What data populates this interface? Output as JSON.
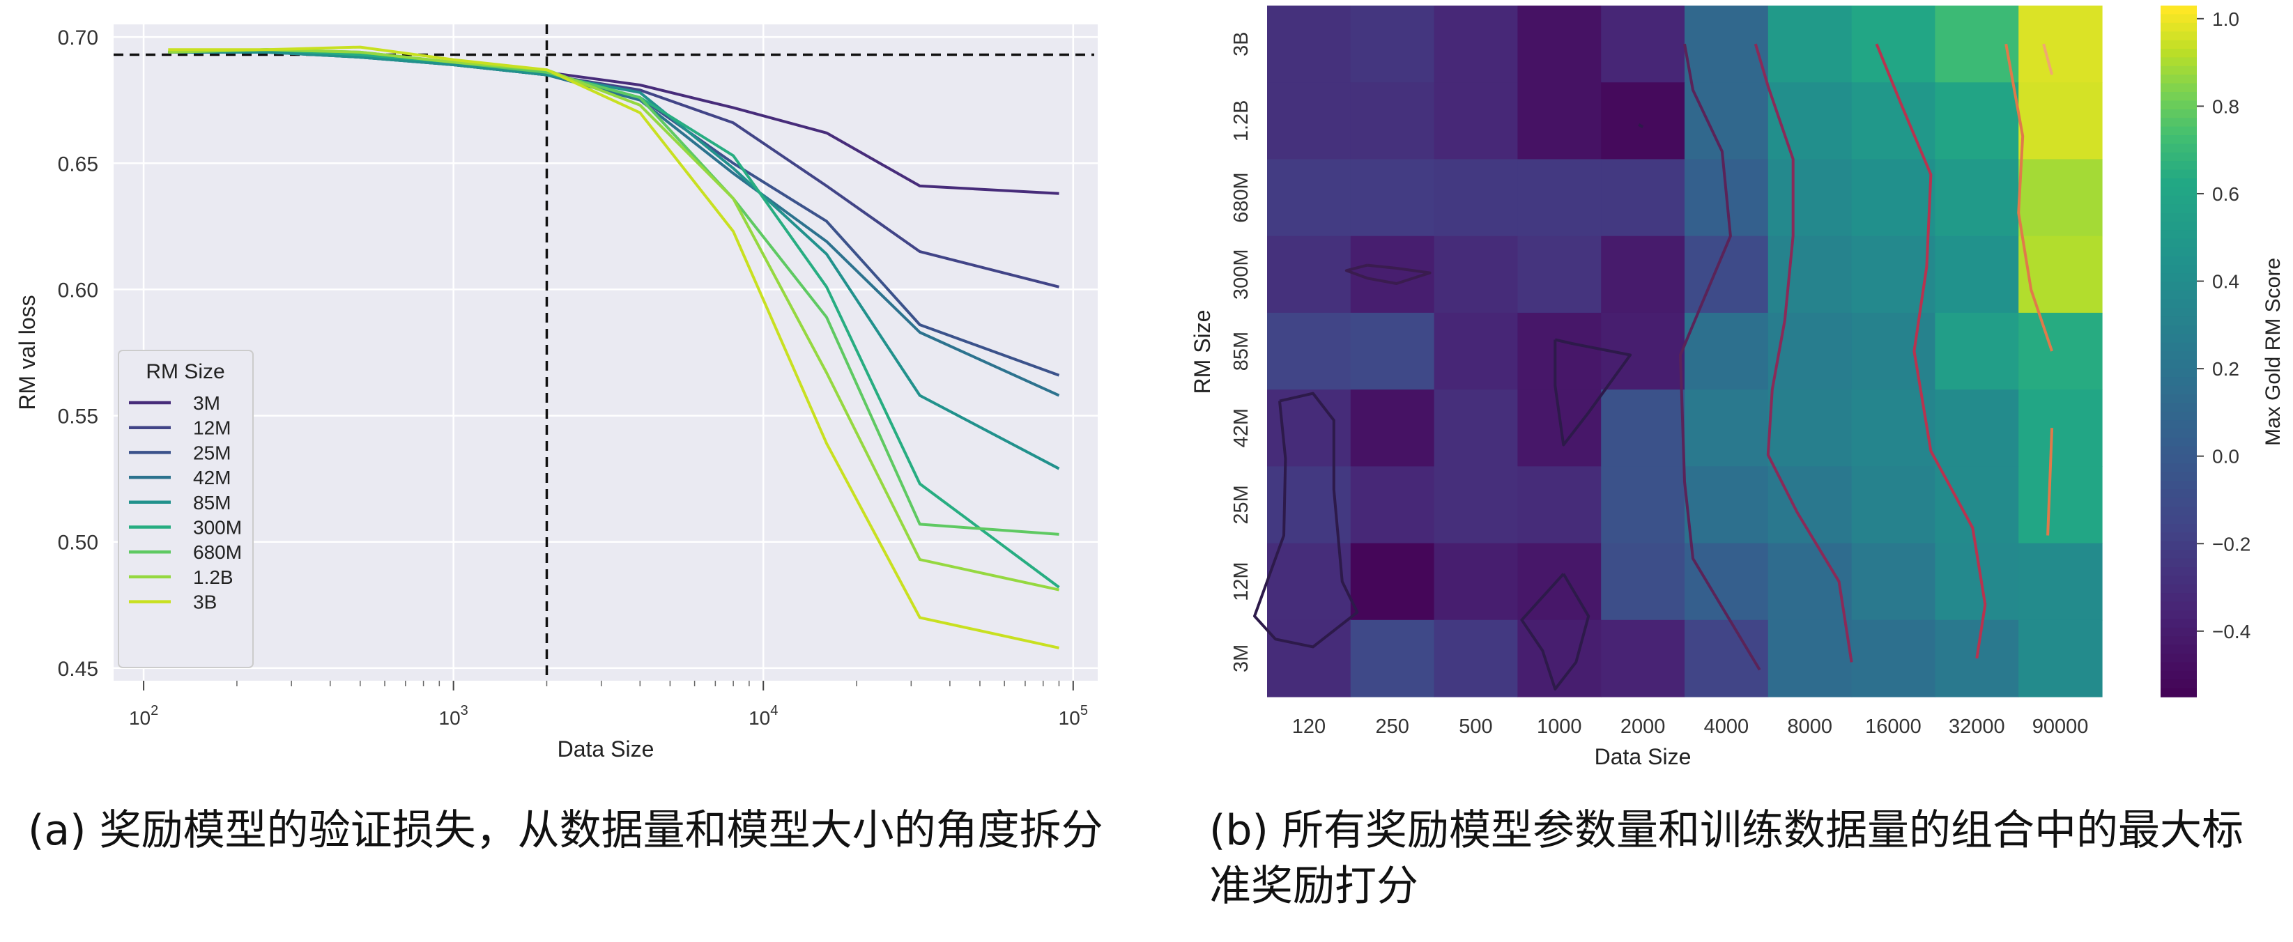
{
  "chart_data": [
    {
      "type": "line",
      "xlabel": "Data Size",
      "ylabel": "RM val loss",
      "x_scale": "log",
      "xlim": [
        80,
        120000
      ],
      "ylim": [
        0.445,
        0.705
      ],
      "x_ticks": [
        {
          "value": 100,
          "base": "10",
          "exp": "2"
        },
        {
          "value": 1000,
          "base": "10",
          "exp": "3"
        },
        {
          "value": 10000,
          "base": "10",
          "exp": "4"
        },
        {
          "value": 100000,
          "base": "10",
          "exp": "5"
        }
      ],
      "y_ticks": [
        0.45,
        0.5,
        0.55,
        0.6,
        0.65,
        0.7
      ],
      "y_tick_labels": [
        "0.45",
        "0.50",
        "0.55",
        "0.60",
        "0.65",
        "0.70"
      ],
      "reference_lines": {
        "horizontal_y": 0.693,
        "vertical_x": 2000
      },
      "legend": {
        "title": "RM Size",
        "placement": "center-left"
      },
      "x": [
        120,
        250,
        500,
        1000,
        2000,
        4000,
        8000,
        16000,
        32000,
        90000
      ],
      "series": [
        {
          "name": "3M",
          "color": "#472c7a",
          "values": [
            0.694,
            0.694,
            0.693,
            0.69,
            0.686,
            0.681,
            0.672,
            0.662,
            0.641,
            0.638
          ]
        },
        {
          "name": "12M",
          "color": "#414487",
          "values": [
            0.694,
            0.694,
            0.693,
            0.689,
            0.685,
            0.679,
            0.666,
            0.641,
            0.615,
            0.601
          ]
        },
        {
          "name": "25M",
          "color": "#3b528b",
          "values": [
            0.694,
            0.694,
            0.692,
            0.689,
            0.685,
            0.676,
            0.65,
            0.627,
            0.586,
            0.566
          ]
        },
        {
          "name": "42M",
          "color": "#2c728e",
          "values": [
            0.694,
            0.694,
            0.692,
            0.689,
            0.685,
            0.675,
            0.646,
            0.619,
            0.583,
            0.558
          ]
        },
        {
          "name": "85M",
          "color": "#21918c",
          "values": [
            0.694,
            0.694,
            0.692,
            0.689,
            0.685,
            0.678,
            0.648,
            0.614,
            0.558,
            0.529
          ]
        },
        {
          "name": "300M",
          "color": "#27ad81",
          "values": [
            0.694,
            0.695,
            0.693,
            0.69,
            0.686,
            0.676,
            0.653,
            0.601,
            0.523,
            0.482
          ]
        },
        {
          "name": "680M",
          "color": "#5ec962",
          "values": [
            0.694,
            0.695,
            0.694,
            0.69,
            0.686,
            0.676,
            0.636,
            0.589,
            0.507,
            0.503
          ]
        },
        {
          "name": "1.2B",
          "color": "#95d840",
          "values": [
            0.694,
            0.695,
            0.694,
            0.69,
            0.687,
            0.673,
            0.636,
            0.567,
            0.493,
            0.481
          ]
        },
        {
          "name": "3B",
          "color": "#c8e020",
          "values": [
            0.695,
            0.695,
            0.696,
            0.691,
            0.687,
            0.67,
            0.623,
            0.539,
            0.47,
            0.458
          ]
        }
      ]
    },
    {
      "type": "heatmap",
      "xlabel": "Data Size",
      "ylabel": "RM Size",
      "x_categories": [
        "120",
        "250",
        "500",
        "1000",
        "2000",
        "4000",
        "8000",
        "16000",
        "32000",
        "90000"
      ],
      "y_categories": [
        "3B",
        "1.2B",
        "680M",
        "300M",
        "85M",
        "42M",
        "25M",
        "12M",
        "3M"
      ],
      "values": [
        [
          -0.27,
          -0.24,
          -0.32,
          -0.45,
          -0.33,
          0.12,
          0.52,
          0.62,
          0.72,
          0.98
        ],
        [
          -0.27,
          -0.27,
          -0.32,
          -0.45,
          -0.5,
          0.12,
          0.43,
          0.5,
          0.6,
          0.97
        ],
        [
          -0.2,
          -0.2,
          -0.22,
          -0.22,
          -0.22,
          0.06,
          0.38,
          0.44,
          0.52,
          0.9
        ],
        [
          -0.27,
          -0.38,
          -0.3,
          -0.25,
          -0.4,
          -0.1,
          0.33,
          0.38,
          0.45,
          0.92
        ],
        [
          -0.15,
          -0.12,
          -0.33,
          -0.42,
          -0.38,
          0.18,
          0.28,
          0.32,
          0.55,
          0.65
        ],
        [
          -0.3,
          -0.45,
          -0.28,
          -0.42,
          -0.05,
          0.25,
          0.3,
          0.35,
          0.4,
          0.62
        ],
        [
          -0.22,
          -0.32,
          -0.28,
          -0.3,
          -0.05,
          0.18,
          0.24,
          0.32,
          0.4,
          0.62
        ],
        [
          -0.29,
          -0.52,
          -0.38,
          -0.42,
          -0.08,
          0.05,
          0.15,
          0.25,
          0.38,
          0.4
        ],
        [
          -0.3,
          -0.12,
          -0.22,
          -0.38,
          -0.35,
          -0.15,
          0.15,
          0.18,
          0.25,
          0.4
        ]
      ],
      "colorbar": {
        "label": "Max Gold RM Score",
        "range": [
          -0.55,
          1.03
        ],
        "colormap": "viridis",
        "ticks": [
          -0.4,
          -0.2,
          0.0,
          0.2,
          0.4,
          0.6,
          0.8,
          1.0
        ],
        "tick_labels": [
          "−0.4",
          "−0.2",
          "0.0",
          "0.2",
          "0.4",
          "0.6",
          "0.8",
          "1.0"
        ]
      }
    }
  ],
  "captions": {
    "a": "(a) 奖励模型的验证损失，从数据量和模型大小的角度拆分",
    "b": "(b) 所有奖励模型参数量和训练数据量的组合中的最大标准奖励打分"
  }
}
